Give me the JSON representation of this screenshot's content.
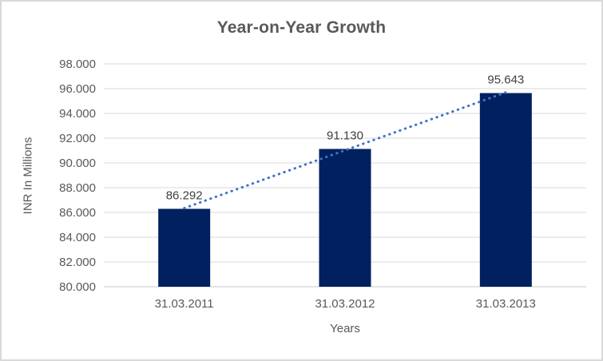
{
  "chart_data": {
    "type": "bar",
    "title": "Year-on-Year Growth",
    "xlabel": "Years",
    "ylabel": "INR In Millions",
    "categories": [
      "31.03.2011",
      "31.03.2012",
      "31.03.2013"
    ],
    "values": [
      86.292,
      91.13,
      95.643
    ],
    "data_labels": [
      "86.292",
      "91.130",
      "95.643"
    ],
    "y_ticks": [
      "98.000",
      "96.000",
      "94.000",
      "92.000",
      "90.000",
      "88.000",
      "86.000",
      "84.000",
      "82.000",
      "80.000"
    ],
    "ylim": [
      80,
      98
    ],
    "grid": true,
    "legend": "none",
    "trendline": {
      "type": "linear",
      "style": "dotted"
    },
    "colors": {
      "bar": "#002060",
      "trendline": "#4472C4",
      "gridline": "#D9D9D9",
      "axis_line": "#C9C9C9",
      "axis_text": "#595959",
      "title_text": "#595959",
      "data_label_text": "#404040",
      "background": "#FFFFFF",
      "border": "#D9D9D9"
    }
  }
}
